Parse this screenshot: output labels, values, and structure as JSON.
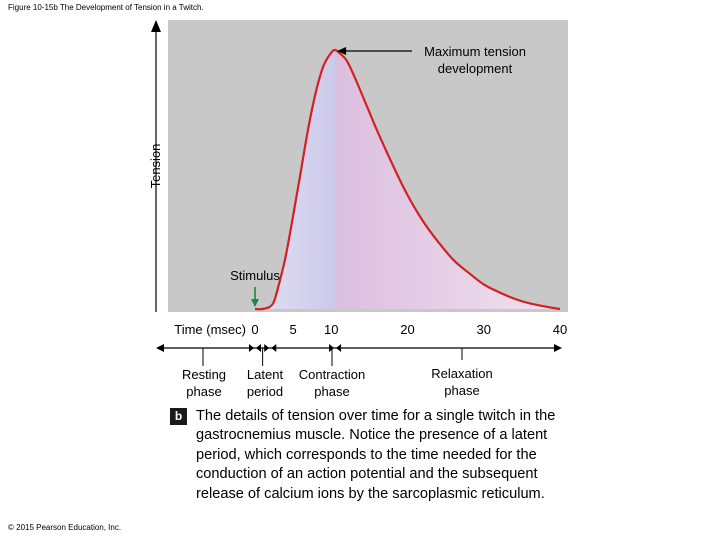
{
  "figure_title": "Figure 10-15b The Development of Tension in a Twitch.",
  "copyright": "© 2015 Pearson Education, Inc.",
  "caption_letter": "b",
  "caption": "The details of tension over time for a single twitch in the gastrocnemius muscle. Notice the presence of a latent period, which corresponds to the time needed for the conduction of an action potential and the subsequent release of calcium ions by the sarcoplasmic reticulum.",
  "colors": {
    "plot_bg": "#c8c8c8",
    "curve": "#d42020",
    "contraction_fill": "#9a96d2",
    "relaxation_fill": "#e6c8e4",
    "stimulus_arrow": "#1a8a3a"
  },
  "chart_data": {
    "type": "line",
    "xlabel": "Time (msec)",
    "ylabel": "Tension",
    "x_ticks": [
      0,
      5,
      10,
      20,
      30,
      40
    ],
    "x_tick_labels": [
      "0",
      "5",
      "10",
      "20",
      "30",
      "40"
    ],
    "xlim": [
      0,
      40
    ],
    "ylim": [
      0,
      1
    ],
    "stimulus_label": "Stimulus",
    "stimulus_time": 0,
    "peak_label": "Maximum tension development",
    "peak_label_lines": [
      "Maximum tension",
      "development"
    ],
    "series": [
      {
        "x": [
          0,
          1,
          2,
          2.5,
          3,
          4,
          5,
          6,
          7,
          8,
          9,
          10,
          10.5,
          11,
          12,
          13,
          14,
          15,
          16,
          18,
          20,
          22,
          24,
          26,
          28,
          30,
          32,
          34,
          36,
          38,
          40
        ],
        "y": [
          0,
          0,
          0.01,
          0.03,
          0.08,
          0.2,
          0.36,
          0.53,
          0.7,
          0.84,
          0.94,
          0.99,
          1.0,
          0.99,
          0.96,
          0.9,
          0.83,
          0.76,
          0.69,
          0.56,
          0.44,
          0.34,
          0.26,
          0.19,
          0.14,
          0.095,
          0.065,
          0.04,
          0.022,
          0.01,
          0
        ]
      }
    ],
    "phases": [
      {
        "label_lines": [
          "Resting",
          "phase"
        ],
        "from": null,
        "to": 0
      },
      {
        "label_lines": [
          "Latent",
          "period"
        ],
        "from": 0,
        "to": 2
      },
      {
        "label_lines": [
          "Contraction",
          "phase"
        ],
        "from": 2,
        "to": 10.5
      },
      {
        "label_lines": [
          "Relaxation",
          "phase"
        ],
        "from": 10.5,
        "to": 40
      }
    ]
  }
}
